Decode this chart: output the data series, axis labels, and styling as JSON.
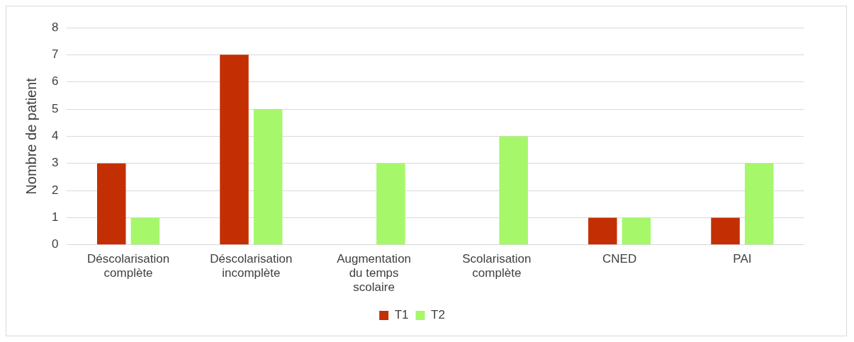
{
  "chart_data": {
    "type": "bar",
    "ylabel": "Nombre de patient",
    "categories": [
      "Déscolarisation complète",
      "Déscolarisation incomplète",
      "Augmentation du temps scolaire",
      "Scolarisation complète",
      "CNED",
      "PAI"
    ],
    "series": [
      {
        "name": "T1",
        "color": "#c32f02",
        "values": [
          3,
          7,
          0,
          0,
          1,
          1
        ]
      },
      {
        "name": "T2",
        "color": "#a6f76a",
        "values": [
          1,
          5,
          3,
          4,
          1,
          3
        ]
      }
    ],
    "ylim": [
      0,
      8
    ],
    "yticks": [
      0,
      1,
      2,
      3,
      4,
      5,
      6,
      7,
      8
    ],
    "grid": "y",
    "legend": "bottom"
  }
}
